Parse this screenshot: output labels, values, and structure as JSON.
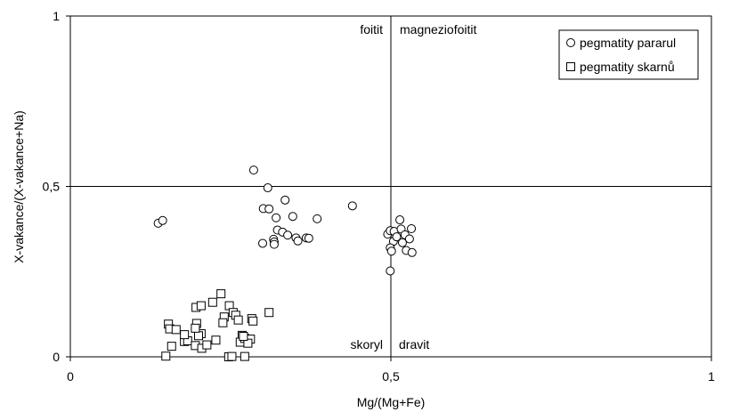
{
  "chart_data": {
    "type": "scatter",
    "title": "",
    "xlabel": "Mg/(Mg+Fe)",
    "ylabel": "X-vakance/(X-vakance+Na)",
    "xlim": [
      0,
      1
    ],
    "ylim": [
      0,
      1
    ],
    "x_ticks": [
      "0",
      "0,5",
      "1"
    ],
    "y_ticks": [
      "0",
      "0,5",
      "1"
    ],
    "grid": false,
    "divider_lines": {
      "x": 0.5,
      "y": 0.5
    },
    "quadrant_labels": {
      "top_left": "foitit",
      "top_right": "magneziofoitit",
      "bottom_left": "skoryl",
      "bottom_right": "dravit"
    },
    "legend": {
      "placement": "top-right"
    },
    "series": [
      {
        "name": "pegmatity pararul",
        "marker": "circle",
        "points": [
          [
            0.137,
            0.392
          ],
          [
            0.144,
            0.4
          ],
          [
            0.286,
            0.548
          ],
          [
            0.308,
            0.496
          ],
          [
            0.301,
            0.435
          ],
          [
            0.31,
            0.434
          ],
          [
            0.335,
            0.46
          ],
          [
            0.321,
            0.408
          ],
          [
            0.347,
            0.412
          ],
          [
            0.385,
            0.405
          ],
          [
            0.44,
            0.443
          ],
          [
            0.323,
            0.372
          ],
          [
            0.331,
            0.366
          ],
          [
            0.339,
            0.357
          ],
          [
            0.352,
            0.349
          ],
          [
            0.355,
            0.34
          ],
          [
            0.368,
            0.349
          ],
          [
            0.372,
            0.348
          ],
          [
            0.3,
            0.333
          ],
          [
            0.317,
            0.345
          ],
          [
            0.318,
            0.337
          ],
          [
            0.318,
            0.33
          ],
          [
            0.495,
            0.36
          ],
          [
            0.499,
            0.37
          ],
          [
            0.505,
            0.368
          ],
          [
            0.504,
            0.339
          ],
          [
            0.499,
            0.32
          ],
          [
            0.501,
            0.31
          ],
          [
            0.509,
            0.352
          ],
          [
            0.516,
            0.375
          ],
          [
            0.514,
            0.402
          ],
          [
            0.522,
            0.358
          ],
          [
            0.529,
            0.346
          ],
          [
            0.532,
            0.376
          ],
          [
            0.518,
            0.335
          ],
          [
            0.524,
            0.312
          ],
          [
            0.533,
            0.306
          ],
          [
            0.499,
            0.252
          ]
        ]
      },
      {
        "name": "pegmatity skarnů",
        "marker": "square",
        "points": [
          [
            0.153,
            0.096
          ],
          [
            0.155,
            0.082
          ],
          [
            0.165,
            0.08
          ],
          [
            0.158,
            0.031
          ],
          [
            0.178,
            0.045
          ],
          [
            0.183,
            0.047
          ],
          [
            0.195,
            0.033
          ],
          [
            0.178,
            0.065
          ],
          [
            0.197,
            0.098
          ],
          [
            0.204,
            0.068
          ],
          [
            0.2,
            0.062
          ],
          [
            0.195,
            0.084
          ],
          [
            0.196,
            0.145
          ],
          [
            0.204,
            0.15
          ],
          [
            0.222,
            0.16
          ],
          [
            0.235,
            0.185
          ],
          [
            0.24,
            0.117
          ],
          [
            0.238,
            0.1
          ],
          [
            0.227,
            0.049
          ],
          [
            0.205,
            0.025
          ],
          [
            0.213,
            0.035
          ],
          [
            0.248,
            0.15
          ],
          [
            0.254,
            0.13
          ],
          [
            0.258,
            0.122
          ],
          [
            0.262,
            0.108
          ],
          [
            0.268,
            0.063
          ],
          [
            0.265,
            0.043
          ],
          [
            0.272,
            0.054
          ],
          [
            0.281,
            0.052
          ],
          [
            0.283,
            0.112
          ],
          [
            0.285,
            0.105
          ],
          [
            0.277,
            0.04
          ],
          [
            0.247,
            0.0
          ],
          [
            0.252,
            0.001
          ],
          [
            0.272,
            0.001
          ],
          [
            0.149,
            0.002
          ],
          [
            0.31,
            0.13
          ],
          [
            0.27,
            0.06
          ]
        ]
      }
    ]
  }
}
